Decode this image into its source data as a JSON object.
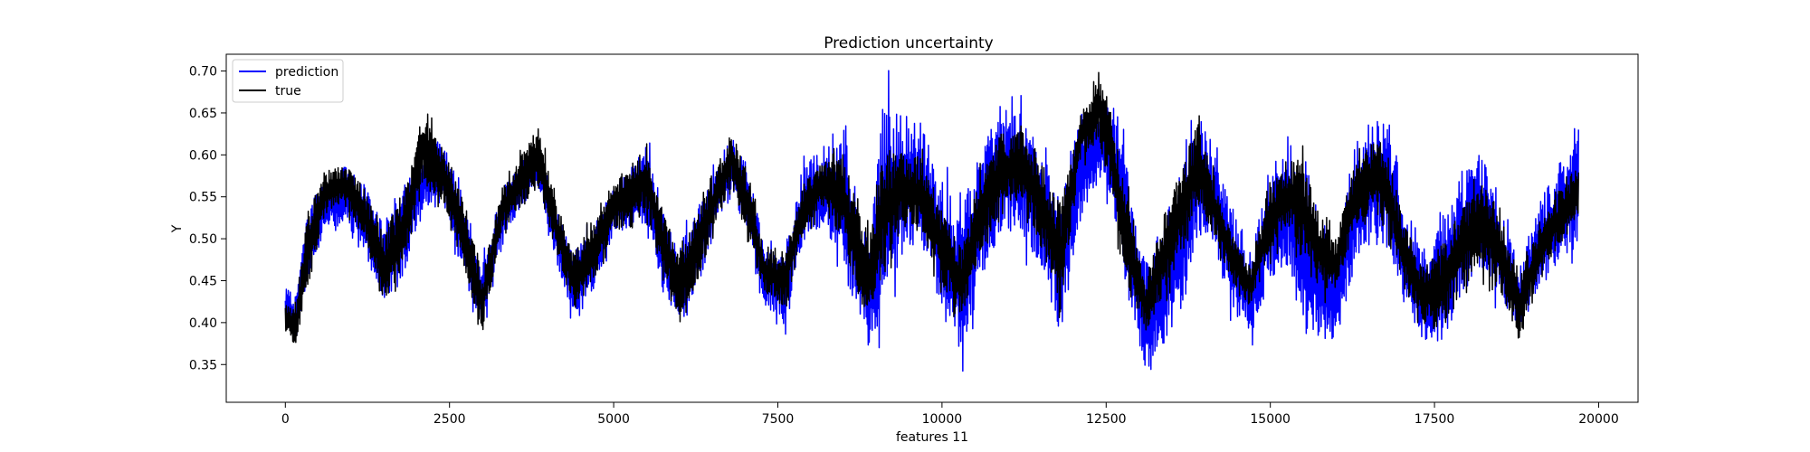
{
  "chart_data": {
    "type": "line",
    "title": "Prediction uncertainty",
    "xlabel": "features 11",
    "ylabel": "Y",
    "xlim": [
      -900,
      20600
    ],
    "ylim": [
      0.305,
      0.72
    ],
    "xticks": [
      0,
      2500,
      5000,
      7500,
      10000,
      12500,
      15000,
      17500,
      20000
    ],
    "yticks": [
      0.35,
      0.4,
      0.45,
      0.5,
      0.55,
      0.6,
      0.65,
      0.7
    ],
    "legend_position": "top-left",
    "grid": false,
    "series": [
      {
        "name": "prediction",
        "color": "#0000ff",
        "x_start": 0,
        "x_end": 19700,
        "envelope_x": [
          0,
          150,
          350,
          600,
          900,
          1200,
          1500,
          1800,
          2100,
          2400,
          2700,
          3000,
          3300,
          3600,
          3850,
          4100,
          4400,
          4700,
          5000,
          5300,
          5500,
          5750,
          6000,
          6300,
          6600,
          6800,
          7050,
          7300,
          7600,
          7900,
          8200,
          8500,
          8700,
          8900,
          9100,
          9400,
          9700,
          10000,
          10300,
          10600,
          10900,
          11200,
          11500,
          11800,
          12100,
          12400,
          12600,
          12800,
          13100,
          13400,
          13700,
          13900,
          14100,
          14400,
          14700,
          15000,
          15300,
          15500,
          15750,
          16000,
          16300,
          16600,
          16800,
          17000,
          17300,
          17600,
          17900,
          18200,
          18500,
          18800,
          19100,
          19400,
          19700
        ],
        "envelope_low": [
          0.39,
          0.365,
          0.44,
          0.5,
          0.51,
          0.47,
          0.41,
          0.44,
          0.53,
          0.53,
          0.44,
          0.38,
          0.49,
          0.53,
          0.55,
          0.47,
          0.39,
          0.42,
          0.5,
          0.51,
          0.5,
          0.42,
          0.385,
          0.43,
          0.51,
          0.53,
          0.49,
          0.41,
          0.38,
          0.48,
          0.5,
          0.44,
          0.38,
          0.345,
          0.37,
          0.45,
          0.47,
          0.38,
          0.33,
          0.42,
          0.48,
          0.48,
          0.44,
          0.36,
          0.5,
          0.56,
          0.52,
          0.4,
          0.32,
          0.34,
          0.4,
          0.47,
          0.48,
          0.4,
          0.36,
          0.43,
          0.44,
          0.37,
          0.35,
          0.36,
          0.44,
          0.48,
          0.46,
          0.42,
          0.36,
          0.35,
          0.4,
          0.44,
          0.41,
          0.37,
          0.43,
          0.45,
          0.47
        ],
        "envelope_high": [
          0.45,
          0.44,
          0.55,
          0.58,
          0.6,
          0.58,
          0.53,
          0.58,
          0.6,
          0.64,
          0.56,
          0.48,
          0.57,
          0.6,
          0.63,
          0.55,
          0.5,
          0.53,
          0.57,
          0.6,
          0.63,
          0.55,
          0.5,
          0.56,
          0.6,
          0.64,
          0.6,
          0.5,
          0.5,
          0.61,
          0.62,
          0.66,
          0.58,
          0.52,
          0.705,
          0.69,
          0.66,
          0.6,
          0.56,
          0.65,
          0.67,
          0.68,
          0.64,
          0.57,
          0.66,
          0.67,
          0.68,
          0.62,
          0.49,
          0.56,
          0.62,
          0.68,
          0.63,
          0.56,
          0.5,
          0.6,
          0.63,
          0.61,
          0.53,
          0.5,
          0.64,
          0.66,
          0.68,
          0.56,
          0.5,
          0.56,
          0.6,
          0.63,
          0.55,
          0.48,
          0.56,
          0.61,
          0.66
        ]
      },
      {
        "name": "true",
        "color": "#000000",
        "x_start": 0,
        "x_end": 19700,
        "envelope_x": [
          0,
          150,
          350,
          600,
          900,
          1200,
          1500,
          1800,
          2100,
          2400,
          2700,
          3000,
          3300,
          3600,
          3850,
          4100,
          4400,
          4700,
          5000,
          5300,
          5500,
          5750,
          6000,
          6300,
          6600,
          6800,
          7050,
          7300,
          7600,
          7900,
          8200,
          8500,
          8700,
          8900,
          9100,
          9400,
          9700,
          10000,
          10300,
          10600,
          10900,
          11200,
          11500,
          11800,
          12100,
          12400,
          12600,
          12800,
          13100,
          13400,
          13700,
          13900,
          14100,
          14400,
          14700,
          15000,
          15300,
          15500,
          15750,
          16000,
          16300,
          16600,
          16800,
          17000,
          17300,
          17600,
          17900,
          18200,
          18500,
          18800,
          19100,
          19400,
          19700
        ],
        "envelope_low": [
          0.38,
          0.36,
          0.43,
          0.52,
          0.53,
          0.49,
          0.41,
          0.45,
          0.55,
          0.53,
          0.45,
          0.38,
          0.5,
          0.53,
          0.55,
          0.48,
          0.4,
          0.44,
          0.5,
          0.5,
          0.52,
          0.44,
          0.39,
          0.44,
          0.52,
          0.55,
          0.48,
          0.43,
          0.4,
          0.5,
          0.53,
          0.47,
          0.41,
          0.39,
          0.44,
          0.5,
          0.49,
          0.43,
          0.39,
          0.47,
          0.52,
          0.54,
          0.47,
          0.39,
          0.58,
          0.6,
          0.53,
          0.42,
          0.38,
          0.42,
          0.48,
          0.52,
          0.5,
          0.44,
          0.41,
          0.47,
          0.5,
          0.45,
          0.42,
          0.43,
          0.5,
          0.52,
          0.49,
          0.44,
          0.39,
          0.37,
          0.42,
          0.45,
          0.42,
          0.36,
          0.45,
          0.48,
          0.52
        ],
        "envelope_high": [
          0.43,
          0.43,
          0.55,
          0.59,
          0.6,
          0.57,
          0.52,
          0.57,
          0.665,
          0.62,
          0.56,
          0.47,
          0.57,
          0.61,
          0.645,
          0.56,
          0.5,
          0.53,
          0.58,
          0.6,
          0.63,
          0.55,
          0.5,
          0.55,
          0.6,
          0.645,
          0.59,
          0.49,
          0.5,
          0.58,
          0.6,
          0.62,
          0.56,
          0.52,
          0.62,
          0.62,
          0.61,
          0.55,
          0.5,
          0.6,
          0.64,
          0.64,
          0.62,
          0.56,
          0.66,
          0.715,
          0.66,
          0.58,
          0.46,
          0.55,
          0.61,
          0.66,
          0.6,
          0.52,
          0.48,
          0.58,
          0.6,
          0.62,
          0.55,
          0.51,
          0.61,
          0.63,
          0.62,
          0.54,
          0.48,
          0.51,
          0.56,
          0.59,
          0.55,
          0.47,
          0.53,
          0.57,
          0.6
        ]
      }
    ]
  }
}
